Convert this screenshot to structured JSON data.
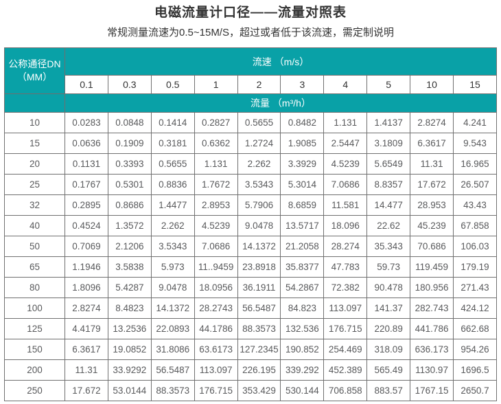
{
  "page": {
    "title": "电磁流量计口径——流量对照表",
    "subtitle": "常规测量流速为0.5~15M/S，超过或者低于该流速，需定制说明"
  },
  "colors": {
    "header_teal": "#09a1a7",
    "border_gray": "#6f6f6f",
    "title_text": "#333333",
    "data_text": "#58595b"
  },
  "table": {
    "corner_header_line1": "公称通径DN",
    "corner_header_line2": "（MM）",
    "velocity_header": "流速 （m/s）",
    "flow_header": "流量 （m³/h）",
    "velocities": [
      "0.1",
      "0.3",
      "0.5",
      "1",
      "2",
      "3",
      "4",
      "5",
      "10",
      "15"
    ],
    "rows": [
      {
        "dn": "10",
        "values": [
          "0.0283",
          "0.0848",
          "0.1414",
          "0.2827",
          "0.5655",
          "0.8482",
          "1.131",
          "1.4137",
          "2.8274",
          "4.241"
        ]
      },
      {
        "dn": "15",
        "values": [
          "0.0636",
          "0.1909",
          "0.3181",
          "0.6362",
          "1.2724",
          "1.9085",
          "2.5447",
          "3.1809",
          "6.3617",
          "9.543"
        ]
      },
      {
        "dn": "20",
        "values": [
          "0.1131",
          "0.3393",
          "0.5655",
          "1.131",
          "2.262",
          "3.3929",
          "4.5239",
          "5.6549",
          "11.31",
          "16.965"
        ]
      },
      {
        "dn": "25",
        "values": [
          "0.1767",
          "0.5301",
          "0.8836",
          "1.7672",
          "3.5343",
          "5.3014",
          "7.0686",
          "8.8357",
          "17.672",
          "26.507"
        ]
      },
      {
        "dn": "32",
        "values": [
          "0.2895",
          "0.8686",
          "1.4477",
          "2.8953",
          "5.7906",
          "8.6859",
          "11.581",
          "14.477",
          "28.953",
          "43.43"
        ]
      },
      {
        "dn": "40",
        "values": [
          "0.4524",
          "1.3572",
          "2.262",
          "4.5239",
          "9.0478",
          "13.5717",
          "18.096",
          "22.62",
          "45.239",
          "67.858"
        ]
      },
      {
        "dn": "50",
        "values": [
          "0.7069",
          "2.1206",
          "3.5343",
          "7.0686",
          "14.1372",
          "21.2058",
          "28.274",
          "35.343",
          "70.686",
          "106.03"
        ]
      },
      {
        "dn": "65",
        "values": [
          "1.1946",
          "3.5838",
          "5.973",
          "11..9459",
          "23.8918",
          "35.8377",
          "47.783",
          "59.73",
          "119.459",
          "179.19"
        ]
      },
      {
        "dn": "80",
        "values": [
          "1.8096",
          "5.4287",
          "9.0478",
          "18.0956",
          "36.1911",
          "54.2867",
          "72.382",
          "90.478",
          "180.956",
          "271.43"
        ]
      },
      {
        "dn": "100",
        "values": [
          "2.8274",
          "8.4823",
          "14.1372",
          "28.2743",
          "56.5487",
          "84.823",
          "113.097",
          "141.37",
          "282.743",
          "424.12"
        ]
      },
      {
        "dn": "125",
        "values": [
          "4.4179",
          "13.2536",
          "22.0893",
          "44.1786",
          "88.3573",
          "132.536",
          "176.715",
          "220.89",
          "441.786",
          "662.68"
        ]
      },
      {
        "dn": "150",
        "values": [
          "6.3617",
          "19.0852",
          "31.8086",
          "63.6173",
          "127.2345",
          "190.852",
          "254.469",
          "318.09",
          "636.173",
          "954.26"
        ]
      },
      {
        "dn": "200",
        "values": [
          "11.31",
          "33.9292",
          "56.5487",
          "113.097",
          "226.195",
          "339.292",
          "452.389",
          "565.49",
          "1130.97",
          "1696.5"
        ]
      },
      {
        "dn": "250",
        "values": [
          "17.672",
          "53.0144",
          "88.3573",
          "176.715",
          "353.429",
          "530.144",
          "706.858",
          "883.57",
          "1767.15",
          "2650.7"
        ]
      }
    ]
  }
}
